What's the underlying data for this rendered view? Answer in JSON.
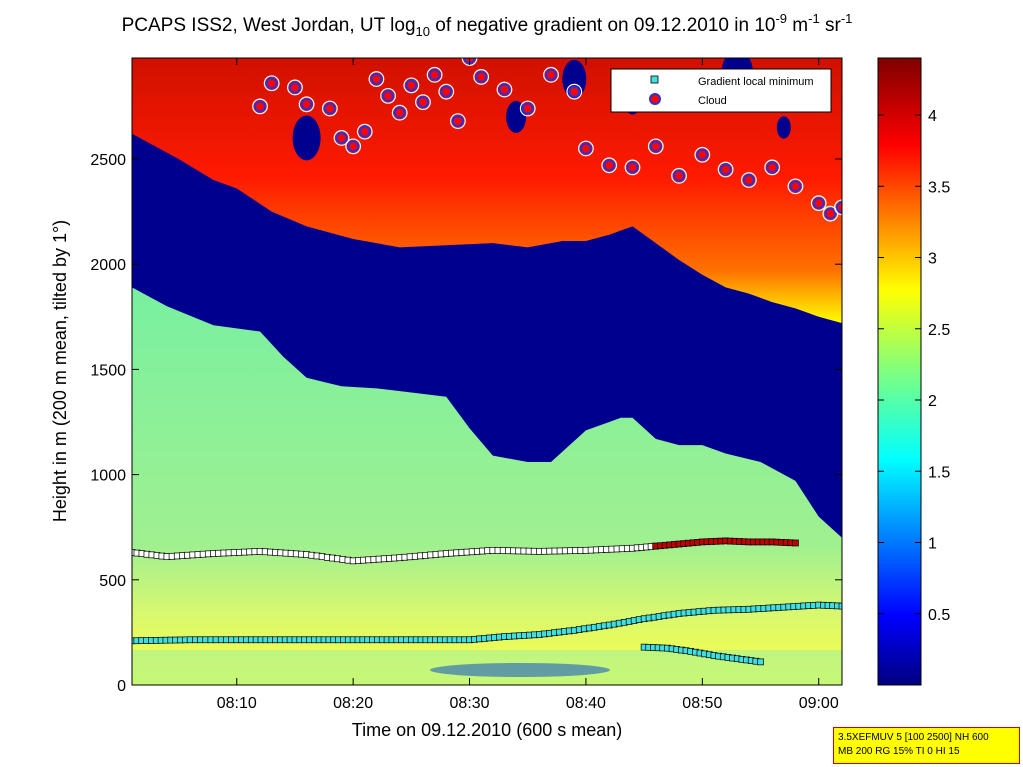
{
  "title": {
    "pre": "PCAPS ISS2, West Jordan, UT log",
    "sub": "10",
    "mid": " of negative gradient on 09.12.2010 in 10",
    "exp1": "-9",
    "unit1": " m",
    "exp2": "-1",
    "unit2": " sr",
    "exp3": "-1"
  },
  "info_box": {
    "line1": "3.5XEFMUV 5 [100 2500] NH 600",
    "line2": "MB 200 RG 15% TI 0 HI 15"
  },
  "colors": {
    "low": "#00008f",
    "green": "#7fff7f",
    "yellow": "#ffff00",
    "red": "#ff2000",
    "dark": "#800000",
    "cloud_marker": "#3030d0",
    "cloud_edge": "#ffffff",
    "cloud_center": "#ff0000",
    "min_cyan": "#40e0e0",
    "min_white": "#ffffff",
    "min_red": "#c00000",
    "min_yellow": "#ffff00",
    "min_magenta": "#d020ff"
  },
  "chart_data": {
    "type": "heatmap",
    "xlabel": "Time on 09.12.2010 (600 s mean)",
    "ylabel": "Height in m (200 m mean, tilted by 1°)",
    "x_unit": "minutes after 08:00",
    "xlim": [
      1,
      62
    ],
    "ylim": [
      0,
      2980
    ],
    "x_ticks": [
      {
        "value": 10,
        "label": "08:10"
      },
      {
        "value": 20,
        "label": "08:20"
      },
      {
        "value": 30,
        "label": "08:30"
      },
      {
        "value": 40,
        "label": "08:40"
      },
      {
        "value": 50,
        "label": "08:50"
      },
      {
        "value": 60,
        "label": "09:00"
      }
    ],
    "y_ticks": [
      {
        "value": 0,
        "label": "0"
      },
      {
        "value": 500,
        "label": "500"
      },
      {
        "value": 1000,
        "label": "1000"
      },
      {
        "value": 1500,
        "label": "1500"
      },
      {
        "value": 2000,
        "label": "2000"
      },
      {
        "value": 2500,
        "label": "2500"
      }
    ],
    "colorbar": {
      "range": [
        0,
        4.4
      ],
      "ticks": [
        {
          "value": 0.5,
          "label": "0.5"
        },
        {
          "value": 1,
          "label": "1"
        },
        {
          "value": 1.5,
          "label": "1.5"
        },
        {
          "value": 2,
          "label": "2"
        },
        {
          "value": 2.5,
          "label": "2.5"
        },
        {
          "value": 3,
          "label": "3"
        },
        {
          "value": 3.5,
          "label": "3.5"
        },
        {
          "value": 4,
          "label": "4"
        }
      ]
    },
    "legend": {
      "placement": "top-right",
      "entries": [
        {
          "label": "Gradient local minimum",
          "marker": "square",
          "color": "#40e0e0"
        },
        {
          "label": "Cloud",
          "marker": "circle",
          "color": "#ff0000"
        }
      ]
    },
    "layers": {
      "aerosol_top": {
        "x": [
          1,
          4,
          8,
          12,
          14,
          16,
          19,
          22,
          25,
          28,
          30,
          32,
          35,
          37,
          40,
          42,
          43,
          44,
          46,
          48,
          50,
          52,
          55,
          58,
          60,
          62
        ],
        "y": [
          1890,
          1800,
          1710,
          1680,
          1560,
          1460,
          1420,
          1410,
          1390,
          1370,
          1220,
          1090,
          1060,
          1060,
          1210,
          1250,
          1270,
          1270,
          1170,
          1140,
          1140,
          1100,
          1060,
          970,
          800,
          700
        ]
      },
      "cloud_base": {
        "x": [
          1,
          5,
          8,
          10,
          13,
          16,
          20,
          24,
          28,
          32,
          35,
          38,
          40,
          42,
          44,
          46,
          48,
          50,
          52,
          54,
          56,
          58,
          60,
          62
        ],
        "y": [
          2620,
          2500,
          2400,
          2360,
          2250,
          2180,
          2120,
          2080,
          2090,
          2100,
          2080,
          2110,
          2110,
          2140,
          2180,
          2100,
          2020,
          1950,
          1890,
          1860,
          1820,
          1790,
          1750,
          1720
        ]
      }
    },
    "series": [
      {
        "name": "Gradient local minimum",
        "marker": "square",
        "color": "#40e0e0",
        "x": [
          1,
          6,
          10,
          15,
          20,
          25,
          30,
          33,
          36,
          39,
          42,
          45,
          48,
          51,
          54,
          57,
          60,
          62
        ],
        "y": [
          210,
          215,
          215,
          215,
          215,
          215,
          215,
          230,
          240,
          260,
          285,
          315,
          340,
          355,
          360,
          370,
          380,
          375
        ]
      },
      {
        "marker": "square",
        "color": "#40e0e0",
        "x": [
          45,
          47,
          49,
          51,
          53,
          55
        ],
        "y": [
          180,
          175,
          160,
          140,
          125,
          110
        ]
      },
      {
        "marker": "square",
        "color": "#ffffff",
        "x": [
          1,
          4,
          8,
          12,
          16,
          20,
          24,
          28,
          32,
          36,
          40,
          44,
          46
        ],
        "y": [
          630,
          610,
          625,
          635,
          620,
          590,
          605,
          625,
          640,
          635,
          640,
          650,
          660
        ]
      },
      {
        "marker": "square",
        "color": "#c00000",
        "x": [
          46,
          48,
          50,
          52,
          54,
          56,
          58
        ],
        "y": [
          660,
          670,
          680,
          685,
          680,
          680,
          675
        ]
      },
      {
        "name": "Cloud",
        "marker": "circle",
        "color": "#ff0000",
        "x": [
          12,
          13,
          15,
          16,
          18,
          19,
          20,
          21,
          22,
          23,
          24,
          25,
          26,
          27,
          28,
          29,
          30,
          31,
          33,
          35,
          37,
          39,
          40,
          42,
          44,
          46,
          48,
          50,
          52,
          54,
          56,
          58,
          60,
          61,
          62
        ],
        "y": [
          2750,
          2860,
          2840,
          2760,
          2740,
          2600,
          2560,
          2630,
          2880,
          2800,
          2720,
          2850,
          2770,
          2900,
          2820,
          2680,
          2980,
          2890,
          2830,
          2740,
          2900,
          2820,
          2550,
          2470,
          2460,
          2560,
          2420,
          2520,
          2450,
          2400,
          2460,
          2370,
          2290,
          2240,
          2270
        ]
      }
    ]
  }
}
